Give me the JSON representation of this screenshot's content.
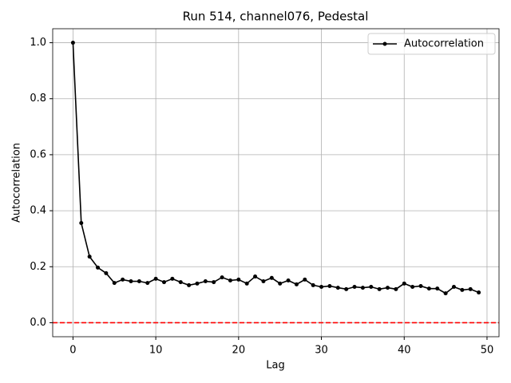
{
  "chart_data": {
    "type": "line",
    "title": "Run 514, channel076, Pedestal",
    "x_label": "Lag",
    "y_label": "Autocorrelation",
    "x": [
      0,
      1,
      2,
      3,
      4,
      5,
      6,
      7,
      8,
      9,
      10,
      11,
      12,
      13,
      14,
      15,
      16,
      17,
      18,
      19,
      20,
      21,
      22,
      23,
      24,
      25,
      26,
      27,
      28,
      29,
      30,
      31,
      32,
      33,
      34,
      35,
      36,
      37,
      38,
      39,
      40,
      41,
      42,
      43,
      44,
      45,
      46,
      47,
      48,
      49
    ],
    "series": [
      {
        "name": "Autocorrelation",
        "color": "#000000",
        "marker": "dot",
        "values": [
          1.0,
          0.356,
          0.236,
          0.197,
          0.177,
          0.142,
          0.154,
          0.148,
          0.148,
          0.142,
          0.157,
          0.145,
          0.157,
          0.145,
          0.134,
          0.14,
          0.148,
          0.145,
          0.162,
          0.151,
          0.154,
          0.14,
          0.165,
          0.148,
          0.16,
          0.14,
          0.151,
          0.137,
          0.154,
          0.134,
          0.128,
          0.131,
          0.125,
          0.12,
          0.128,
          0.125,
          0.128,
          0.12,
          0.125,
          0.12,
          0.14,
          0.128,
          0.131,
          0.122,
          0.122,
          0.105,
          0.128,
          0.117,
          0.12,
          0.108
        ]
      }
    ],
    "reference_line": {
      "y": 0,
      "color": "#ff0000",
      "style": "dashed"
    },
    "xlim": [
      -2.45,
      51.45
    ],
    "xticks": [
      0,
      10,
      20,
      30,
      40,
      50
    ],
    "ylim": [
      -0.05,
      1.05
    ],
    "yticks": [
      {
        "value": 0,
        "label": "0.0"
      },
      0.2,
      0.4,
      0.6,
      0.8,
      {
        "value": 1,
        "label": "1.0"
      }
    ],
    "grid": true,
    "legend": "upper right"
  }
}
